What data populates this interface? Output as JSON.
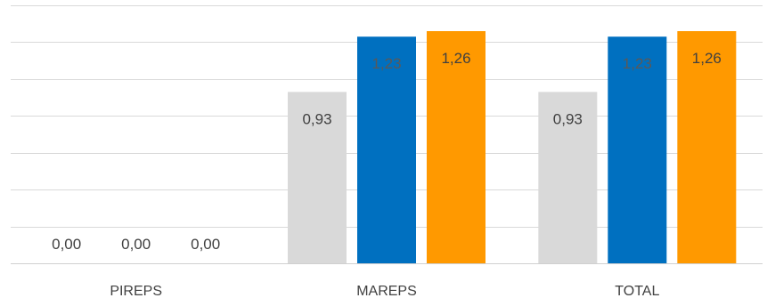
{
  "chart_data": {
    "type": "bar",
    "categories": [
      "PIREPS",
      "MAREPS",
      "TOTAL"
    ],
    "series": [
      {
        "values": [
          0.0,
          0.93,
          0.93
        ],
        "color": "#d9d9d9"
      },
      {
        "values": [
          0.0,
          1.23,
          1.23
        ],
        "color": "#0070c0"
      },
      {
        "values": [
          0.0,
          1.26,
          1.26
        ],
        "color": "#ff9900"
      }
    ],
    "data_labels": [
      [
        "0,00",
        "0,93",
        "0,93"
      ],
      [
        "0,00",
        "1,23",
        "1,23"
      ],
      [
        "0,00",
        "1,26",
        "1,26"
      ]
    ],
    "ylim": [
      0,
      1.4
    ],
    "grid": true,
    "legend": "none"
  }
}
